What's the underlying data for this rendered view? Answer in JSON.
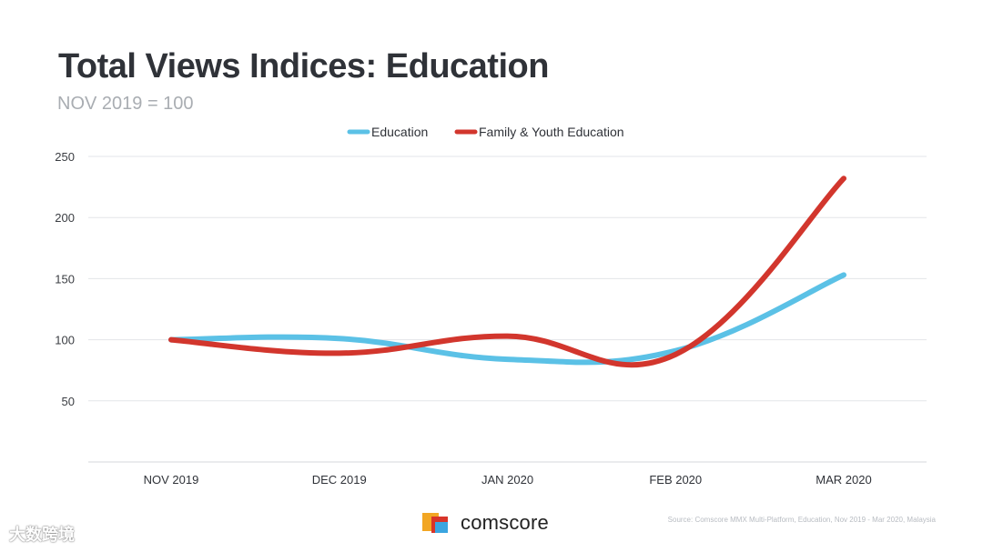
{
  "title": "Total Views Indices: Education",
  "subtitle": "NOV 2019 = 100",
  "source": "Source: Comscore MMX Multi-Platform, Education, Nov 2019 - Mar 2020, Malaysia",
  "brand": {
    "name": "comscore"
  },
  "watermark": "大数跨境",
  "chart_data": {
    "type": "line",
    "categories": [
      "NOV 2019",
      "DEC 2019",
      "JAN 2020",
      "FEB 2020",
      "MAR 2020"
    ],
    "series": [
      {
        "name": "Education",
        "color": "#5bc1e6",
        "values": [
          100,
          101,
          84,
          91,
          153
        ]
      },
      {
        "name": "Family & Youth Education",
        "color": "#d2362d",
        "values": [
          100,
          89,
          103,
          88,
          232
        ]
      }
    ],
    "yticks": [
      50,
      100,
      150,
      200,
      250
    ],
    "ylim": [
      0,
      250
    ],
    "grid": true,
    "legend_position": "top-center"
  }
}
